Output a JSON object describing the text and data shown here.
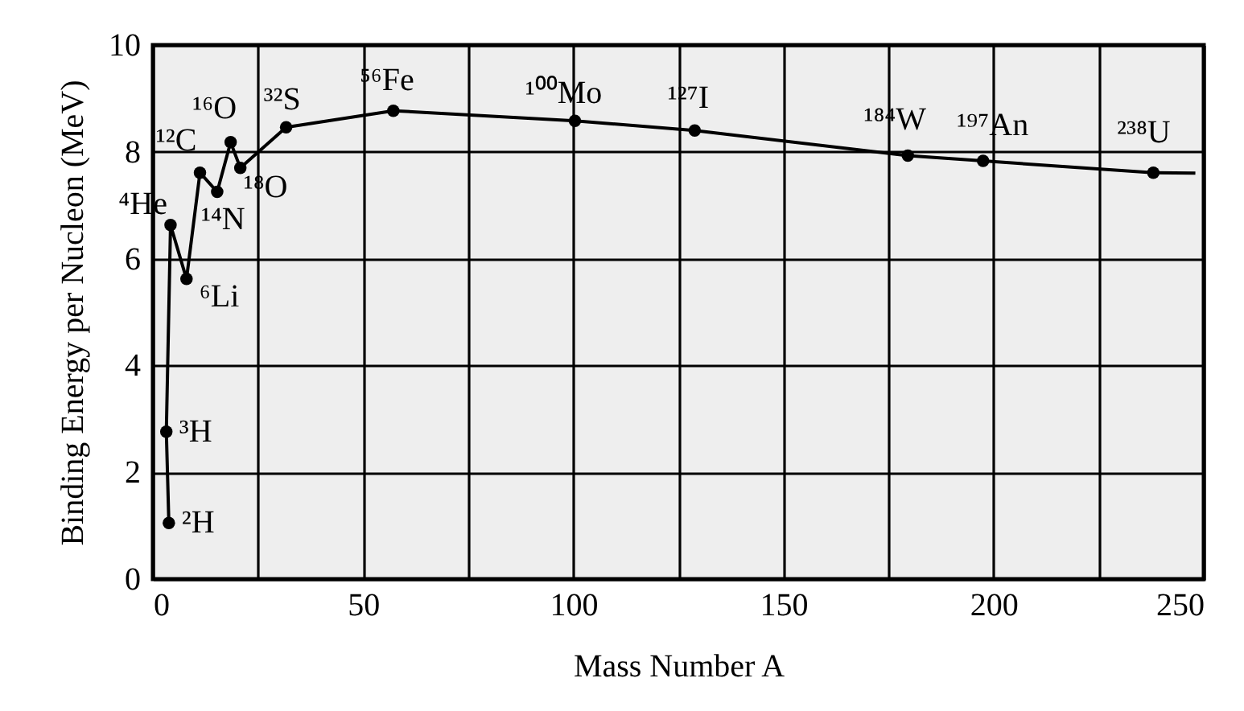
{
  "chart_data": {
    "type": "line",
    "xlabel": "Mass Number A",
    "ylabel": "Binding Energy per Nucleon (MeV)",
    "xlim": [
      0,
      250
    ],
    "ylim": [
      0,
      10
    ],
    "xticks": [
      0,
      {
        "value": 25,
        "label": null
      },
      50,
      {
        "value": 75,
        "label": null
      },
      100,
      {
        "value": 125,
        "label": null
      },
      150,
      {
        "value": 175,
        "label": null
      },
      200,
      {
        "value": 225,
        "label": null
      },
      250
    ],
    "yticks": [
      0,
      2,
      4,
      6,
      8,
      10
    ],
    "grid": true,
    "marker": "circle",
    "series": [
      {
        "color": "#000000",
        "x": [
          3.8,
          3.2,
          4.2,
          8,
          11.2,
          15.3,
          18.5,
          20.8,
          31.7,
          57.2,
          100.4,
          128.9,
          179.6,
          197.5,
          238
        ],
        "values": [
          1.05,
          2.76,
          6.63,
          5.62,
          7.61,
          7.25,
          8.18,
          7.7,
          8.46,
          8.77,
          8.58,
          8.4,
          7.93,
          7.83,
          7.61
        ]
      },
      {
        "color": "#000000",
        "type": "line",
        "marker": "none",
        "x": [
          238,
          248
        ],
        "values": [
          7.61,
          7.6
        ]
      }
    ],
    "annotations": [
      {
        "text": "²H",
        "x": 3.8,
        "y": 1.05
      },
      {
        "text": "³H",
        "x": 3.2,
        "y": 2.76
      },
      {
        "text": "⁴He",
        "x": 4.2,
        "y": 6.63
      },
      {
        "text": "⁶Li",
        "x": 8,
        "y": 5.62
      },
      {
        "text": "¹²C",
        "x": 11.2,
        "y": 7.61
      },
      {
        "text": "¹⁴N",
        "x": 15.3,
        "y": 7.25
      },
      {
        "text": "¹⁶O",
        "x": 18.5,
        "y": 8.18
      },
      {
        "text": "¹⁸O",
        "x": 20.8,
        "y": 7.7
      },
      {
        "text": "³²S",
        "x": 31.7,
        "y": 8.46
      },
      {
        "text": "⁵⁶Fe",
        "x": 57.2,
        "y": 8.77
      },
      {
        "text": "¹⁰⁰Mo",
        "x": 100.4,
        "y": 8.58
      },
      {
        "text": "¹²⁷I",
        "x": 128.9,
        "y": 8.4
      },
      {
        "text": "¹⁸⁴W",
        "x": 179.6,
        "y": 7.93
      },
      {
        "text": "¹⁹⁷An",
        "x": 197.5,
        "y": 7.83
      },
      {
        "text": "²³⁸U",
        "x": 238,
        "y": 7.61
      }
    ]
  }
}
